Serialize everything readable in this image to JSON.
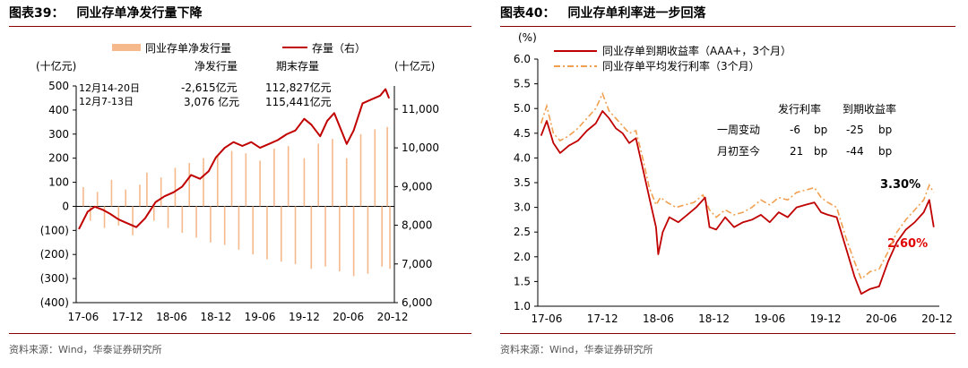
{
  "left": {
    "fig_label": "图表39：",
    "title": "同业存单净发行量下降",
    "source": "资料来源：Wind，华泰证券研究所",
    "chart_data": {
      "type": "bar+line",
      "legend": {
        "position": "top",
        "items": [
          "同业存单净发行量",
          "存量（右）"
        ]
      },
      "y_unit_left": "(十亿元)",
      "y_unit_right": "(十亿元)",
      "ylim_left": [
        -400,
        500
      ],
      "ylim_right": [
        6000,
        11600
      ],
      "yticks_left": [
        "500",
        "400",
        "300",
        "200",
        "100",
        "0",
        "(100)",
        "(200)",
        "(300)",
        "(400)"
      ],
      "yticks_right": [
        "11,000",
        "10,000",
        "9,000",
        "8,000",
        "7,000",
        "6,000"
      ],
      "xticks": [
        "17-06",
        "17-12",
        "18-06",
        "18-12",
        "19-06",
        "19-12",
        "20-06",
        "20-12"
      ],
      "colors": {
        "bars": "#f5b98c",
        "line": "#c00000"
      },
      "annotation": {
        "headers": [
          "净发行量",
          "期末存量"
        ],
        "rows": [
          {
            "period": "12月14-20日",
            "net": "-2,615亿元",
            "stock": "112,827亿元"
          },
          {
            "period": "12月7-13日",
            "net": "3,076 亿元",
            "stock": "115,441亿元"
          }
        ]
      },
      "stock_series": [
        [
          2017.45,
          7900
        ],
        [
          2017.55,
          8350
        ],
        [
          2017.63,
          8480
        ],
        [
          2017.72,
          8400
        ],
        [
          2017.8,
          8300
        ],
        [
          2017.9,
          8150
        ],
        [
          2018.0,
          8050
        ],
        [
          2018.1,
          7950
        ],
        [
          2018.2,
          8180
        ],
        [
          2018.32,
          8600
        ],
        [
          2018.42,
          8750
        ],
        [
          2018.52,
          8850
        ],
        [
          2018.62,
          9000
        ],
        [
          2018.72,
          9300
        ],
        [
          2018.82,
          9200
        ],
        [
          2018.92,
          9400
        ],
        [
          2019.0,
          9750
        ],
        [
          2019.1,
          10000
        ],
        [
          2019.2,
          10150
        ],
        [
          2019.3,
          10050
        ],
        [
          2019.4,
          10150
        ],
        [
          2019.5,
          10000
        ],
        [
          2019.6,
          10100
        ],
        [
          2019.7,
          10200
        ],
        [
          2019.8,
          10350
        ],
        [
          2019.9,
          10450
        ],
        [
          2020.0,
          10750
        ],
        [
          2020.08,
          10600
        ],
        [
          2020.18,
          10300
        ],
        [
          2020.26,
          10700
        ],
        [
          2020.34,
          10900
        ],
        [
          2020.42,
          10450
        ],
        [
          2020.48,
          10100
        ],
        [
          2020.56,
          10450
        ],
        [
          2020.66,
          11150
        ],
        [
          2020.76,
          11250
        ],
        [
          2020.86,
          11350
        ],
        [
          2020.92,
          11520
        ],
        [
          2020.96,
          11280
        ]
      ],
      "net_issuance_bars": [
        [
          2017.5,
          80
        ],
        [
          2017.58,
          -60
        ],
        [
          2017.66,
          60
        ],
        [
          2017.74,
          -90
        ],
        [
          2017.82,
          110
        ],
        [
          2017.9,
          -80
        ],
        [
          2017.98,
          70
        ],
        [
          2018.06,
          -120
        ],
        [
          2018.14,
          90
        ],
        [
          2018.22,
          140
        ],
        [
          2018.3,
          -60
        ],
        [
          2018.38,
          120
        ],
        [
          2018.46,
          -90
        ],
        [
          2018.54,
          160
        ],
        [
          2018.62,
          -110
        ],
        [
          2018.7,
          180
        ],
        [
          2018.78,
          -130
        ],
        [
          2018.86,
          200
        ],
        [
          2018.94,
          -150
        ],
        [
          2019.02,
          210
        ],
        [
          2019.1,
          -160
        ],
        [
          2019.18,
          230
        ],
        [
          2019.26,
          -180
        ],
        [
          2019.34,
          220
        ],
        [
          2019.42,
          -200
        ],
        [
          2019.5,
          190
        ],
        [
          2019.58,
          -220
        ],
        [
          2019.66,
          240
        ],
        [
          2019.74,
          -230
        ],
        [
          2019.82,
          250
        ],
        [
          2019.9,
          -240
        ],
        [
          2020.0,
          200
        ],
        [
          2020.08,
          -260
        ],
        [
          2020.16,
          260
        ],
        [
          2020.24,
          -250
        ],
        [
          2020.32,
          280
        ],
        [
          2020.4,
          -270
        ],
        [
          2020.48,
          200
        ],
        [
          2020.56,
          -290
        ],
        [
          2020.64,
          300
        ],
        [
          2020.72,
          -280
        ],
        [
          2020.8,
          320
        ],
        [
          2020.88,
          -250
        ],
        [
          2020.94,
          330
        ],
        [
          2020.97,
          -260
        ]
      ]
    }
  },
  "right": {
    "fig_label": "图表40：",
    "title": "同业存单利率进一步回落",
    "source": "资料来源：Wind，华泰证券研究所",
    "chart_data": {
      "type": "line",
      "legend": {
        "position": "top-left",
        "items": [
          "同业存单到期收益率（AAA+，3个月）",
          "同业存单平均发行利率（3个月）"
        ]
      },
      "y_unit": "(%)",
      "ylim": [
        1.0,
        6.0
      ],
      "yticks": [
        "6.0",
        "5.5",
        "5.0",
        "4.5",
        "4.0",
        "3.5",
        "3.0",
        "2.5",
        "2.0",
        "1.5",
        "1.0"
      ],
      "xticks": [
        "17-06",
        "17-12",
        "18-06",
        "18-12",
        "19-06",
        "19-12",
        "20-06",
        "20-12"
      ],
      "colors": {
        "ytm": "#c00000",
        "issue": "#f0a050"
      },
      "table": {
        "headers": [
          "发行利率",
          "到期收益率"
        ],
        "rows": [
          {
            "label": "一周变动",
            "issue": "-6",
            "issue_unit": "bp",
            "ytm": "-25",
            "ytm_unit": "bp"
          },
          {
            "label": "月初至今",
            "issue": "21",
            "issue_unit": "bp",
            "ytm": "-44",
            "ytm_unit": "bp"
          }
        ]
      },
      "callouts": {
        "issue_end": "3.30%",
        "ytm_end": "2.60%"
      },
      "ytm_series": [
        [
          2017.45,
          4.45
        ],
        [
          2017.5,
          4.75
        ],
        [
          2017.56,
          4.3
        ],
        [
          2017.62,
          4.1
        ],
        [
          2017.7,
          4.25
        ],
        [
          2017.78,
          4.35
        ],
        [
          2017.86,
          4.55
        ],
        [
          2017.94,
          4.7
        ],
        [
          2018.0,
          4.95
        ],
        [
          2018.06,
          4.8
        ],
        [
          2018.12,
          4.6
        ],
        [
          2018.18,
          4.5
        ],
        [
          2018.24,
          4.3
        ],
        [
          2018.3,
          4.4
        ],
        [
          2018.36,
          3.8
        ],
        [
          2018.42,
          3.2
        ],
        [
          2018.48,
          2.6
        ],
        [
          2018.5,
          2.05
        ],
        [
          2018.54,
          2.5
        ],
        [
          2018.6,
          2.8
        ],
        [
          2018.68,
          2.7
        ],
        [
          2018.76,
          2.85
        ],
        [
          2018.84,
          3.0
        ],
        [
          2018.92,
          3.2
        ],
        [
          2018.96,
          2.6
        ],
        [
          2019.02,
          2.55
        ],
        [
          2019.1,
          2.8
        ],
        [
          2019.18,
          2.6
        ],
        [
          2019.26,
          2.7
        ],
        [
          2019.34,
          2.75
        ],
        [
          2019.42,
          2.85
        ],
        [
          2019.5,
          2.7
        ],
        [
          2019.58,
          2.9
        ],
        [
          2019.66,
          2.8
        ],
        [
          2019.74,
          3.0
        ],
        [
          2019.82,
          3.05
        ],
        [
          2019.9,
          3.1
        ],
        [
          2019.96,
          2.9
        ],
        [
          2020.02,
          2.85
        ],
        [
          2020.1,
          2.8
        ],
        [
          2020.18,
          2.2
        ],
        [
          2020.26,
          1.6
        ],
        [
          2020.32,
          1.25
        ],
        [
          2020.4,
          1.35
        ],
        [
          2020.48,
          1.4
        ],
        [
          2020.56,
          1.9
        ],
        [
          2020.64,
          2.3
        ],
        [
          2020.72,
          2.55
        ],
        [
          2020.8,
          2.7
        ],
        [
          2020.88,
          2.9
        ],
        [
          2020.93,
          3.15
        ],
        [
          2020.97,
          2.6
        ]
      ],
      "issue_series": [
        [
          2017.45,
          4.7
        ],
        [
          2017.5,
          5.05
        ],
        [
          2017.56,
          4.5
        ],
        [
          2017.62,
          4.35
        ],
        [
          2017.7,
          4.45
        ],
        [
          2017.78,
          4.6
        ],
        [
          2017.86,
          4.8
        ],
        [
          2017.94,
          5.0
        ],
        [
          2018.0,
          5.3
        ],
        [
          2018.06,
          4.95
        ],
        [
          2018.12,
          4.8
        ],
        [
          2018.18,
          4.65
        ],
        [
          2018.24,
          4.5
        ],
        [
          2018.3,
          4.55
        ],
        [
          2018.36,
          4.0
        ],
        [
          2018.42,
          3.4
        ],
        [
          2018.48,
          3.05
        ],
        [
          2018.52,
          3.2
        ],
        [
          2018.58,
          3.1
        ],
        [
          2018.66,
          3.0
        ],
        [
          2018.74,
          3.05
        ],
        [
          2018.82,
          3.1
        ],
        [
          2018.9,
          3.25
        ],
        [
          2018.96,
          2.95
        ],
        [
          2019.02,
          2.8
        ],
        [
          2019.1,
          2.95
        ],
        [
          2019.18,
          2.85
        ],
        [
          2019.26,
          2.9
        ],
        [
          2019.34,
          3.0
        ],
        [
          2019.42,
          3.15
        ],
        [
          2019.5,
          3.05
        ],
        [
          2019.58,
          3.2
        ],
        [
          2019.66,
          3.15
        ],
        [
          2019.74,
          3.3
        ],
        [
          2019.82,
          3.35
        ],
        [
          2019.9,
          3.4
        ],
        [
          2019.96,
          3.2
        ],
        [
          2020.02,
          3.1
        ],
        [
          2020.1,
          3.0
        ],
        [
          2020.18,
          2.4
        ],
        [
          2020.26,
          1.9
        ],
        [
          2020.32,
          1.55
        ],
        [
          2020.4,
          1.7
        ],
        [
          2020.48,
          1.75
        ],
        [
          2020.56,
          2.1
        ],
        [
          2020.64,
          2.5
        ],
        [
          2020.72,
          2.75
        ],
        [
          2020.8,
          2.95
        ],
        [
          2020.88,
          3.15
        ],
        [
          2020.93,
          3.45
        ],
        [
          2020.97,
          3.3
        ]
      ]
    }
  }
}
